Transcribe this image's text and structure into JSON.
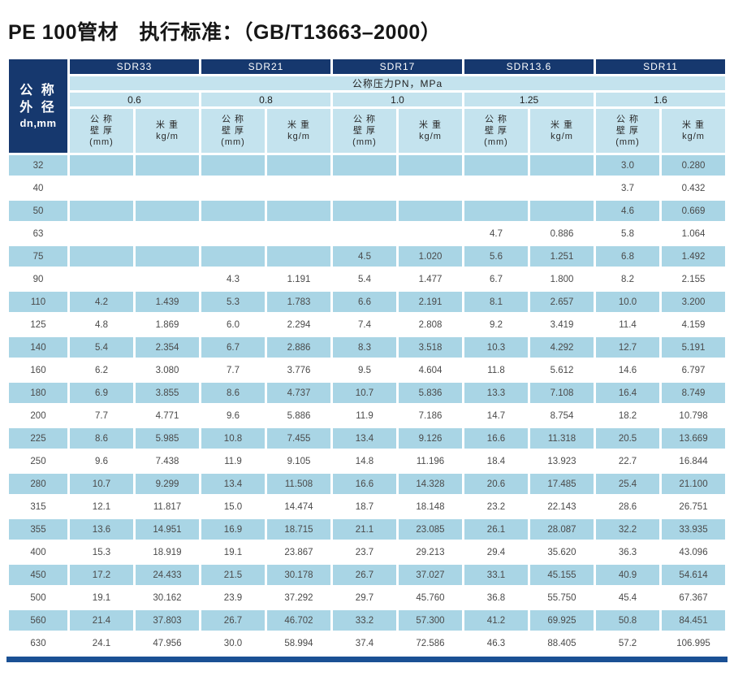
{
  "title": "PE 100管材　执行标准：（GB/T13663–2000）",
  "table": {
    "corner": {
      "line1": "公 称",
      "line2": "外 径",
      "line3": "dn,mm"
    },
    "pressure_banner": "公称压力PN，MPa",
    "sdr_groups": [
      {
        "sdr": "SDR33",
        "pn": "0.6"
      },
      {
        "sdr": "SDR21",
        "pn": "0.8"
      },
      {
        "sdr": "SDR17",
        "pn": "1.0"
      },
      {
        "sdr": "SDR13.6",
        "pn": "1.25"
      },
      {
        "sdr": "SDR11",
        "pn": "1.6"
      }
    ],
    "col_headers": {
      "thickness_line1": "公 称",
      "thickness_line2": "壁 厚",
      "thickness_line3": "(mm)",
      "weight_line1": "米 重",
      "weight_line2": "kg/m"
    },
    "rows": [
      {
        "dn": "32",
        "values": [
          "",
          "",
          "",
          "",
          "",
          "",
          "",
          "",
          "3.0",
          "0.280"
        ]
      },
      {
        "dn": "40",
        "values": [
          "",
          "",
          "",
          "",
          "",
          "",
          "",
          "",
          "3.7",
          "0.432"
        ]
      },
      {
        "dn": "50",
        "values": [
          "",
          "",
          "",
          "",
          "",
          "",
          "",
          "",
          "4.6",
          "0.669"
        ]
      },
      {
        "dn": "63",
        "values": [
          "",
          "",
          "",
          "",
          "",
          "",
          "4.7",
          "0.886",
          "5.8",
          "1.064"
        ]
      },
      {
        "dn": "75",
        "values": [
          "",
          "",
          "",
          "",
          "4.5",
          "1.020",
          "5.6",
          "1.251",
          "6.8",
          "1.492"
        ]
      },
      {
        "dn": "90",
        "values": [
          "",
          "",
          "4.3",
          "1.191",
          "5.4",
          "1.477",
          "6.7",
          "1.800",
          "8.2",
          "2.155"
        ]
      },
      {
        "dn": "110",
        "values": [
          "4.2",
          "1.439",
          "5.3",
          "1.783",
          "6.6",
          "2.191",
          "8.1",
          "2.657",
          "10.0",
          "3.200"
        ]
      },
      {
        "dn": "125",
        "values": [
          "4.8",
          "1.869",
          "6.0",
          "2.294",
          "7.4",
          "2.808",
          "9.2",
          "3.419",
          "11.4",
          "4.159"
        ]
      },
      {
        "dn": "140",
        "values": [
          "5.4",
          "2.354",
          "6.7",
          "2.886",
          "8.3",
          "3.518",
          "10.3",
          "4.292",
          "12.7",
          "5.191"
        ]
      },
      {
        "dn": "160",
        "values": [
          "6.2",
          "3.080",
          "7.7",
          "3.776",
          "9.5",
          "4.604",
          "11.8",
          "5.612",
          "14.6",
          "6.797"
        ]
      },
      {
        "dn": "180",
        "values": [
          "6.9",
          "3.855",
          "8.6",
          "4.737",
          "10.7",
          "5.836",
          "13.3",
          "7.108",
          "16.4",
          "8.749"
        ]
      },
      {
        "dn": "200",
        "values": [
          "7.7",
          "4.771",
          "9.6",
          "5.886",
          "11.9",
          "7.186",
          "14.7",
          "8.754",
          "18.2",
          "10.798"
        ]
      },
      {
        "dn": "225",
        "values": [
          "8.6",
          "5.985",
          "10.8",
          "7.455",
          "13.4",
          "9.126",
          "16.6",
          "11.318",
          "20.5",
          "13.669"
        ]
      },
      {
        "dn": "250",
        "values": [
          "9.6",
          "7.438",
          "11.9",
          "9.105",
          "14.8",
          "11.196",
          "18.4",
          "13.923",
          "22.7",
          "16.844"
        ]
      },
      {
        "dn": "280",
        "values": [
          "10.7",
          "9.299",
          "13.4",
          "11.508",
          "16.6",
          "14.328",
          "20.6",
          "17.485",
          "25.4",
          "21.100"
        ]
      },
      {
        "dn": "315",
        "values": [
          "12.1",
          "11.817",
          "15.0",
          "14.474",
          "18.7",
          "18.148",
          "23.2",
          "22.143",
          "28.6",
          "26.751"
        ]
      },
      {
        "dn": "355",
        "values": [
          "13.6",
          "14.951",
          "16.9",
          "18.715",
          "21.1",
          "23.085",
          "26.1",
          "28.087",
          "32.2",
          "33.935"
        ]
      },
      {
        "dn": "400",
        "values": [
          "15.3",
          "18.919",
          "19.1",
          "23.867",
          "23.7",
          "29.213",
          "29.4",
          "35.620",
          "36.3",
          "43.096"
        ]
      },
      {
        "dn": "450",
        "values": [
          "17.2",
          "24.433",
          "21.5",
          "30.178",
          "26.7",
          "37.027",
          "33.1",
          "45.155",
          "40.9",
          "54.614"
        ]
      },
      {
        "dn": "500",
        "values": [
          "19.1",
          "30.162",
          "23.9",
          "37.292",
          "29.7",
          "45.760",
          "36.8",
          "55.750",
          "45.4",
          "67.367"
        ]
      },
      {
        "dn": "560",
        "values": [
          "21.4",
          "37.803",
          "26.7",
          "46.702",
          "33.2",
          "57.300",
          "41.2",
          "69.925",
          "50.8",
          "84.451"
        ]
      },
      {
        "dn": "630",
        "values": [
          "24.1",
          "47.956",
          "30.0",
          "58.994",
          "37.4",
          "72.586",
          "46.3",
          "88.405",
          "57.2",
          "106.995"
        ]
      }
    ]
  },
  "colors": {
    "header_navy": "#16386e",
    "header_light_blue": "#c4e3ee",
    "row_stripe_blue": "#a9d5e5",
    "bottom_bar_blue": "#1a5094"
  }
}
